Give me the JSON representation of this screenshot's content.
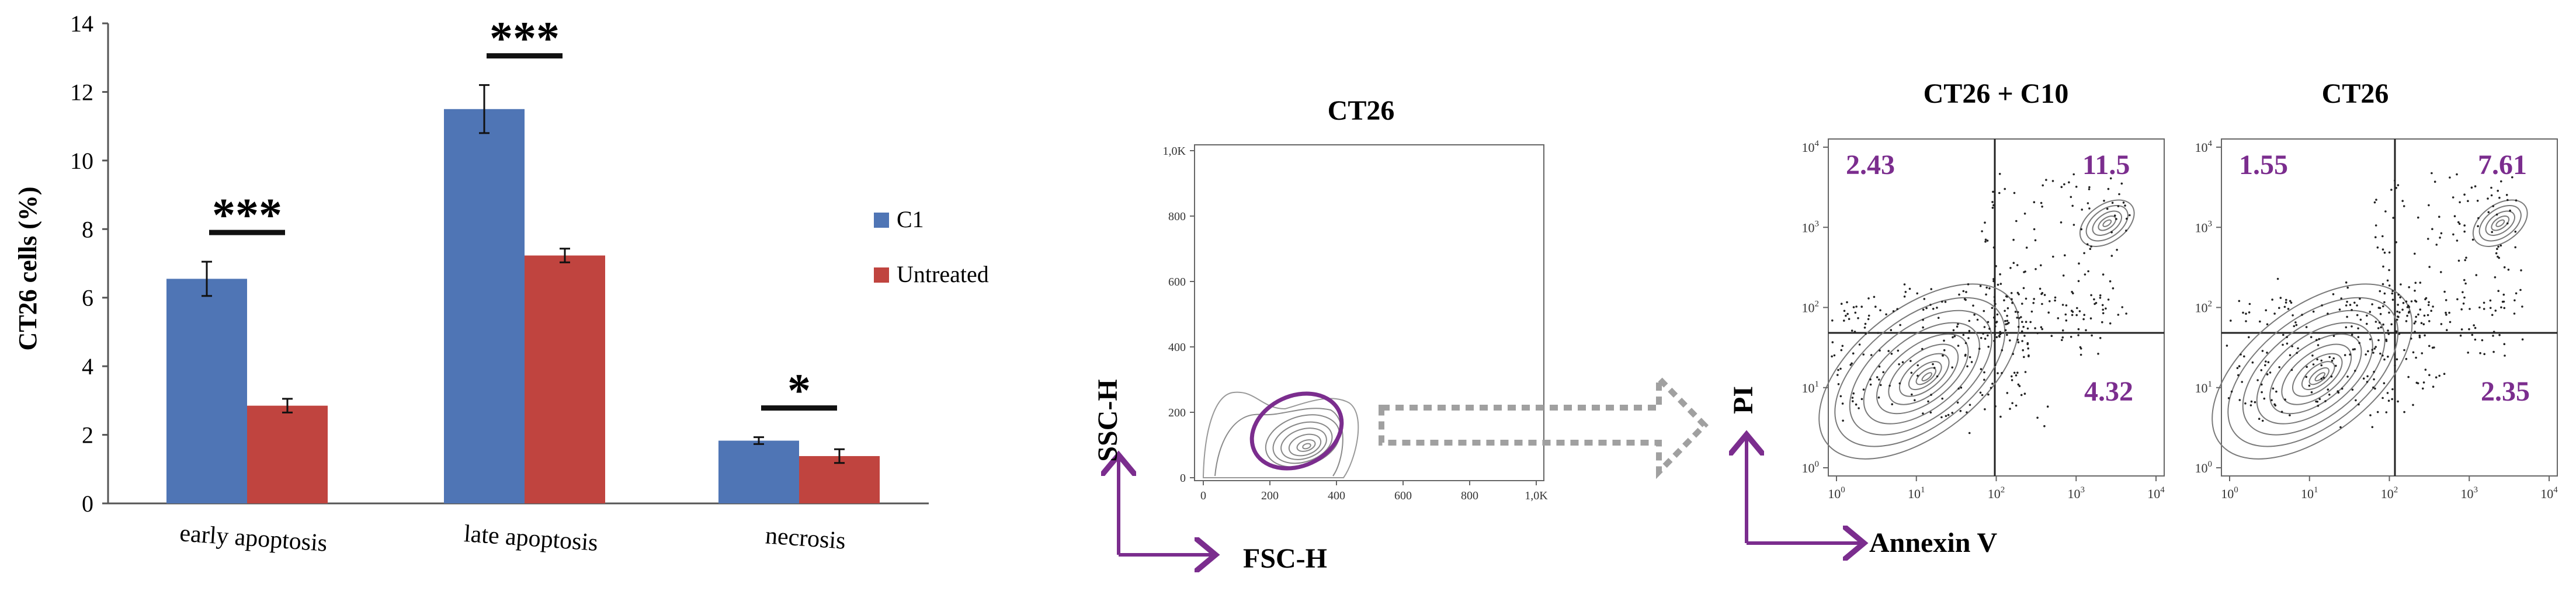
{
  "chart_data": [
    {
      "type": "bar",
      "ylabel": "CT26 cells (%)",
      "ylim": [
        0,
        14
      ],
      "yticks": [
        "0",
        "2",
        "4",
        "6",
        "8",
        "10",
        "12",
        "14"
      ],
      "categories": [
        "early apoptosis",
        "late apoptosis",
        "necrosis"
      ],
      "series": [
        {
          "name": "C1",
          "color": "#4f75b5",
          "values": [
            6.55,
            11.5,
            1.83
          ],
          "errors": [
            0.5,
            0.7,
            0.1
          ]
        },
        {
          "name": "Untreated",
          "color": "#c0443f",
          "values": [
            2.85,
            7.23,
            1.38
          ],
          "errors": [
            0.2,
            0.2,
            0.2
          ]
        }
      ],
      "significance": [
        "***",
        "***",
        "*"
      ],
      "legend_position": "right"
    },
    {
      "type": "scatter",
      "title": "CT26",
      "xlabel": "FSC-H",
      "ylabel": "SSC-H",
      "xticks": [
        "0",
        "200",
        "400",
        "600",
        "800",
        "1,0K"
      ],
      "yticks": [
        "0",
        "200",
        "400",
        "600",
        "800",
        "1,0K"
      ],
      "gate_color": "#7b2d8e"
    },
    {
      "type": "scatter",
      "title": "CT26 + C10",
      "xlabel": "Annexin V",
      "ylabel": "PI",
      "log_scale": true,
      "quadrant_values": {
        "upper_left": "2.43",
        "upper_right": "11.5",
        "lower_right": "4.32"
      }
    },
    {
      "type": "scatter",
      "title": "CT26",
      "log_scale": true,
      "quadrant_values": {
        "upper_left": "1.55",
        "upper_right": "7.61",
        "lower_right": "2.35"
      }
    }
  ],
  "log_tick_exponents": [
    "0",
    "1",
    "2",
    "3",
    "4"
  ],
  "colors": {
    "accent": "#7b2d8e",
    "arrow": "#a0a0a0"
  }
}
